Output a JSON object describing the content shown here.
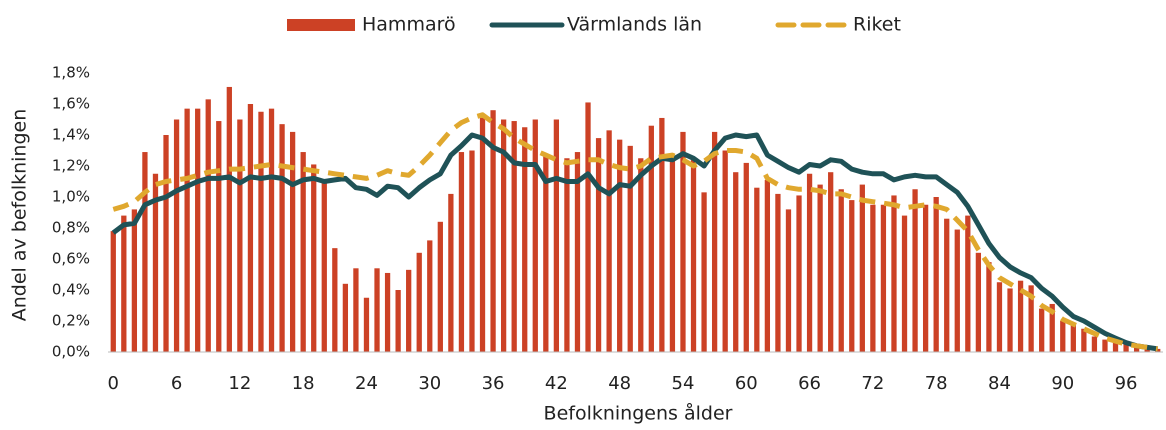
{
  "chart_data": {
    "type": "bar_line",
    "x_label": "Befolkningens ålder",
    "y_label": "Andel av befolkningen",
    "categories": [
      "0",
      null,
      null,
      null,
      null,
      null,
      "6",
      null,
      null,
      null,
      null,
      null,
      "12",
      null,
      null,
      null,
      null,
      null,
      "18",
      null,
      null,
      null,
      null,
      null,
      "24",
      null,
      null,
      null,
      null,
      null,
      "30",
      null,
      null,
      null,
      null,
      null,
      "36",
      null,
      null,
      null,
      null,
      null,
      "42",
      null,
      null,
      null,
      null,
      null,
      "48",
      null,
      null,
      null,
      null,
      null,
      "54",
      null,
      null,
      null,
      null,
      null,
      "60",
      null,
      null,
      null,
      null,
      null,
      "66",
      null,
      null,
      null,
      null,
      null,
      "72",
      null,
      null,
      null,
      null,
      null,
      "78",
      null,
      null,
      null,
      null,
      null,
      "84",
      null,
      null,
      null,
      null,
      null,
      "90",
      null,
      null,
      null,
      null,
      null,
      "96",
      null,
      null,
      null
    ],
    "ylim": [
      0,
      1.8
    ],
    "yticks": [
      {
        "value": 0,
        "label": "0,0%"
      },
      {
        "value": 0.2,
        "label": "0,2%"
      },
      {
        "value": 0.4,
        "label": "0,4%"
      },
      {
        "value": 0.6,
        "label": "0,6%"
      },
      {
        "value": 0.8,
        "label": "0,8%"
      },
      {
        "value": 1.0,
        "label": "1,0%"
      },
      {
        "value": 1.2,
        "label": "1,2%"
      },
      {
        "value": 1.4,
        "label": "1,4%"
      },
      {
        "value": 1.6,
        "label": "1,6%"
      },
      {
        "value": 1.8,
        "label": "1,8%"
      }
    ],
    "grid": false,
    "legend": "top",
    "series": [
      {
        "name": "Hammarö",
        "kind": "bar",
        "color": "#cc4125",
        "values": [
          0.78,
          0.88,
          0.92,
          1.29,
          1.15,
          1.4,
          1.5,
          1.57,
          1.57,
          1.63,
          1.49,
          1.71,
          1.5,
          1.6,
          1.55,
          1.57,
          1.47,
          1.42,
          1.29,
          1.21,
          1.1,
          0.67,
          0.44,
          0.54,
          0.35,
          0.54,
          0.51,
          0.4,
          0.53,
          0.64,
          0.72,
          0.84,
          1.02,
          1.29,
          1.3,
          1.52,
          1.56,
          1.5,
          1.49,
          1.45,
          1.5,
          1.27,
          1.5,
          1.25,
          1.29,
          1.61,
          1.38,
          1.43,
          1.37,
          1.33,
          1.25,
          1.46,
          1.51,
          1.25,
          1.42,
          1.25,
          1.03,
          1.42,
          1.3,
          1.16,
          1.22,
          1.06,
          1.11,
          1.02,
          0.92,
          1.01,
          1.15,
          1.08,
          1.16,
          1.05,
          0.98,
          1.08,
          0.95,
          0.95,
          1.01,
          0.88,
          1.05,
          0.95,
          1.0,
          0.86,
          0.79,
          0.88,
          0.64,
          0.58,
          0.45,
          0.41,
          0.46,
          0.43,
          0.28,
          0.31,
          0.2,
          0.19,
          0.15,
          0.1,
          0.08,
          0.08,
          0.06,
          0.04,
          0.03,
          0.02
        ]
      },
      {
        "name": "Värmlands län",
        "kind": "line",
        "color": "#1f5257",
        "values": [
          0.77,
          0.82,
          0.83,
          0.95,
          0.98,
          1.0,
          1.04,
          1.07,
          1.1,
          1.12,
          1.12,
          1.13,
          1.09,
          1.13,
          1.12,
          1.13,
          1.12,
          1.08,
          1.11,
          1.12,
          1.1,
          1.11,
          1.12,
          1.06,
          1.05,
          1.01,
          1.07,
          1.06,
          1.0,
          1.06,
          1.11,
          1.15,
          1.27,
          1.33,
          1.4,
          1.38,
          1.32,
          1.29,
          1.22,
          1.21,
          1.21,
          1.1,
          1.12,
          1.1,
          1.1,
          1.15,
          1.06,
          1.02,
          1.08,
          1.07,
          1.14,
          1.2,
          1.25,
          1.24,
          1.28,
          1.25,
          1.2,
          1.3,
          1.38,
          1.4,
          1.39,
          1.4,
          1.27,
          1.23,
          1.19,
          1.16,
          1.21,
          1.2,
          1.24,
          1.23,
          1.18,
          1.16,
          1.15,
          1.15,
          1.11,
          1.13,
          1.14,
          1.13,
          1.13,
          1.08,
          1.03,
          0.94,
          0.82,
          0.7,
          0.61,
          0.55,
          0.51,
          0.48,
          0.41,
          0.36,
          0.29,
          0.23,
          0.2,
          0.16,
          0.12,
          0.09,
          0.06,
          0.04,
          0.03,
          0.02
        ]
      },
      {
        "name": "Riket",
        "kind": "dashed",
        "color": "#e0a82e",
        "values": [
          0.92,
          0.94,
          0.97,
          1.03,
          1.08,
          1.1,
          1.11,
          1.12,
          1.14,
          1.16,
          1.17,
          1.18,
          1.18,
          1.19,
          1.2,
          1.21,
          1.2,
          1.19,
          1.18,
          1.17,
          1.16,
          1.15,
          1.14,
          1.13,
          1.12,
          1.14,
          1.17,
          1.15,
          1.14,
          1.2,
          1.27,
          1.35,
          1.43,
          1.48,
          1.51,
          1.53,
          1.48,
          1.44,
          1.38,
          1.34,
          1.3,
          1.27,
          1.24,
          1.22,
          1.23,
          1.24,
          1.24,
          1.21,
          1.19,
          1.18,
          1.2,
          1.25,
          1.26,
          1.27,
          1.24,
          1.2,
          1.23,
          1.28,
          1.3,
          1.3,
          1.29,
          1.25,
          1.12,
          1.08,
          1.06,
          1.05,
          1.05,
          1.04,
          1.02,
          1.02,
          1.0,
          0.98,
          0.97,
          0.96,
          0.95,
          0.93,
          0.94,
          0.95,
          0.94,
          0.92,
          0.85,
          0.78,
          0.66,
          0.56,
          0.48,
          0.44,
          0.4,
          0.36,
          0.3,
          0.26,
          0.21,
          0.18,
          0.15,
          0.12,
          0.09,
          0.07,
          0.05,
          0.04,
          0.03,
          0.02
        ]
      }
    ]
  }
}
